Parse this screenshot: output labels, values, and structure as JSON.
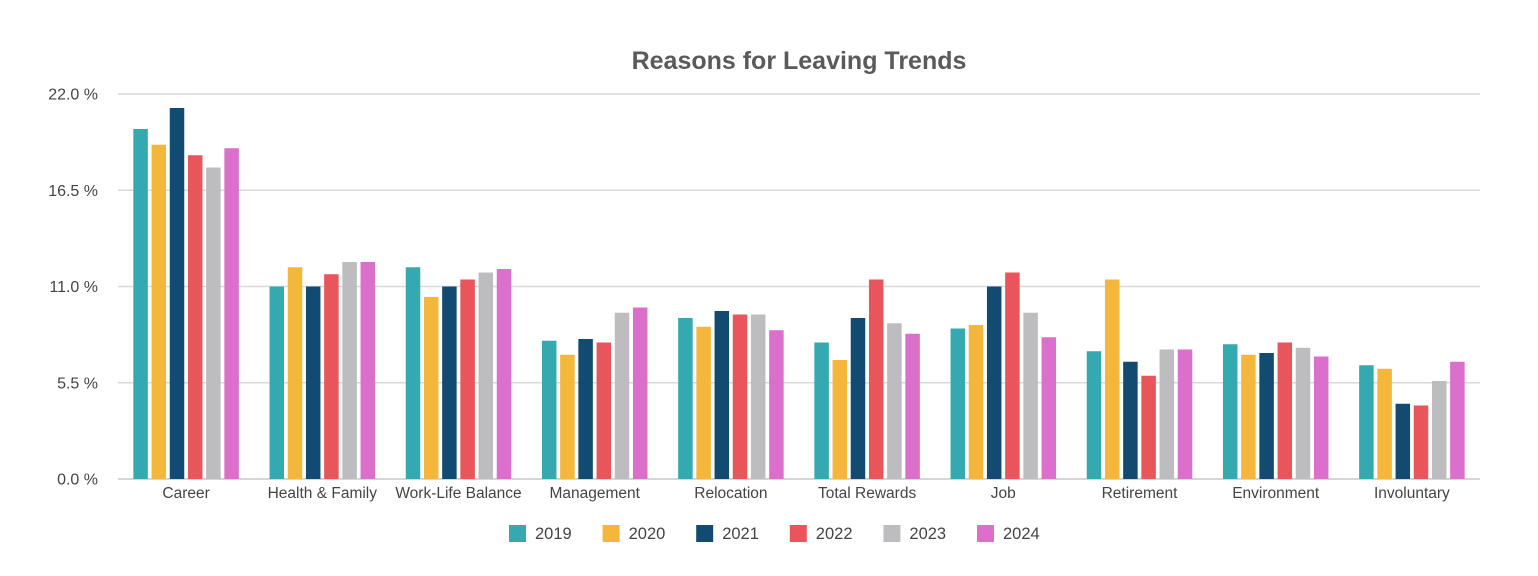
{
  "chart_data": {
    "type": "bar",
    "title": "Reasons for Leaving Trends",
    "xlabel": "",
    "ylabel": "",
    "ylim": [
      0,
      22
    ],
    "yticks": [
      0.0,
      5.5,
      11.0,
      16.5,
      22.0
    ],
    "ytick_labels": [
      "0.0 %",
      "5.5 %",
      "11.0 %",
      "16.5 %",
      "22.0 %"
    ],
    "categories": [
      "Career",
      "Health & Family",
      "Work-Life Balance",
      "Management",
      "Relocation",
      "Total Rewards",
      "Job",
      "Retirement",
      "Environment",
      "Involuntary"
    ],
    "series": [
      {
        "name": "2019",
        "color": "#34a9b0",
        "values": [
          20.0,
          11.0,
          12.1,
          7.9,
          9.2,
          7.8,
          8.6,
          7.3,
          7.7,
          6.5
        ]
      },
      {
        "name": "2020",
        "color": "#f5b73b",
        "values": [
          19.1,
          12.1,
          10.4,
          7.1,
          8.7,
          6.8,
          8.8,
          11.4,
          7.1,
          6.3
        ]
      },
      {
        "name": "2021",
        "color": "#114b71",
        "values": [
          21.2,
          11.0,
          11.0,
          8.0,
          9.6,
          9.2,
          11.0,
          6.7,
          7.2,
          4.3
        ]
      },
      {
        "name": "2022",
        "color": "#e8555a",
        "values": [
          18.5,
          11.7,
          11.4,
          7.8,
          9.4,
          11.4,
          11.8,
          5.9,
          7.8,
          4.2
        ]
      },
      {
        "name": "2023",
        "color": "#bdbdc0",
        "values": [
          17.8,
          12.4,
          11.8,
          9.5,
          9.4,
          8.9,
          9.5,
          7.4,
          7.5,
          5.6
        ]
      },
      {
        "name": "2024",
        "color": "#da70cc",
        "values": [
          18.9,
          12.4,
          12.0,
          9.8,
          8.5,
          8.3,
          8.1,
          7.4,
          7.0,
          6.7
        ]
      }
    ],
    "grid": true,
    "legend_position": "bottom-center"
  }
}
